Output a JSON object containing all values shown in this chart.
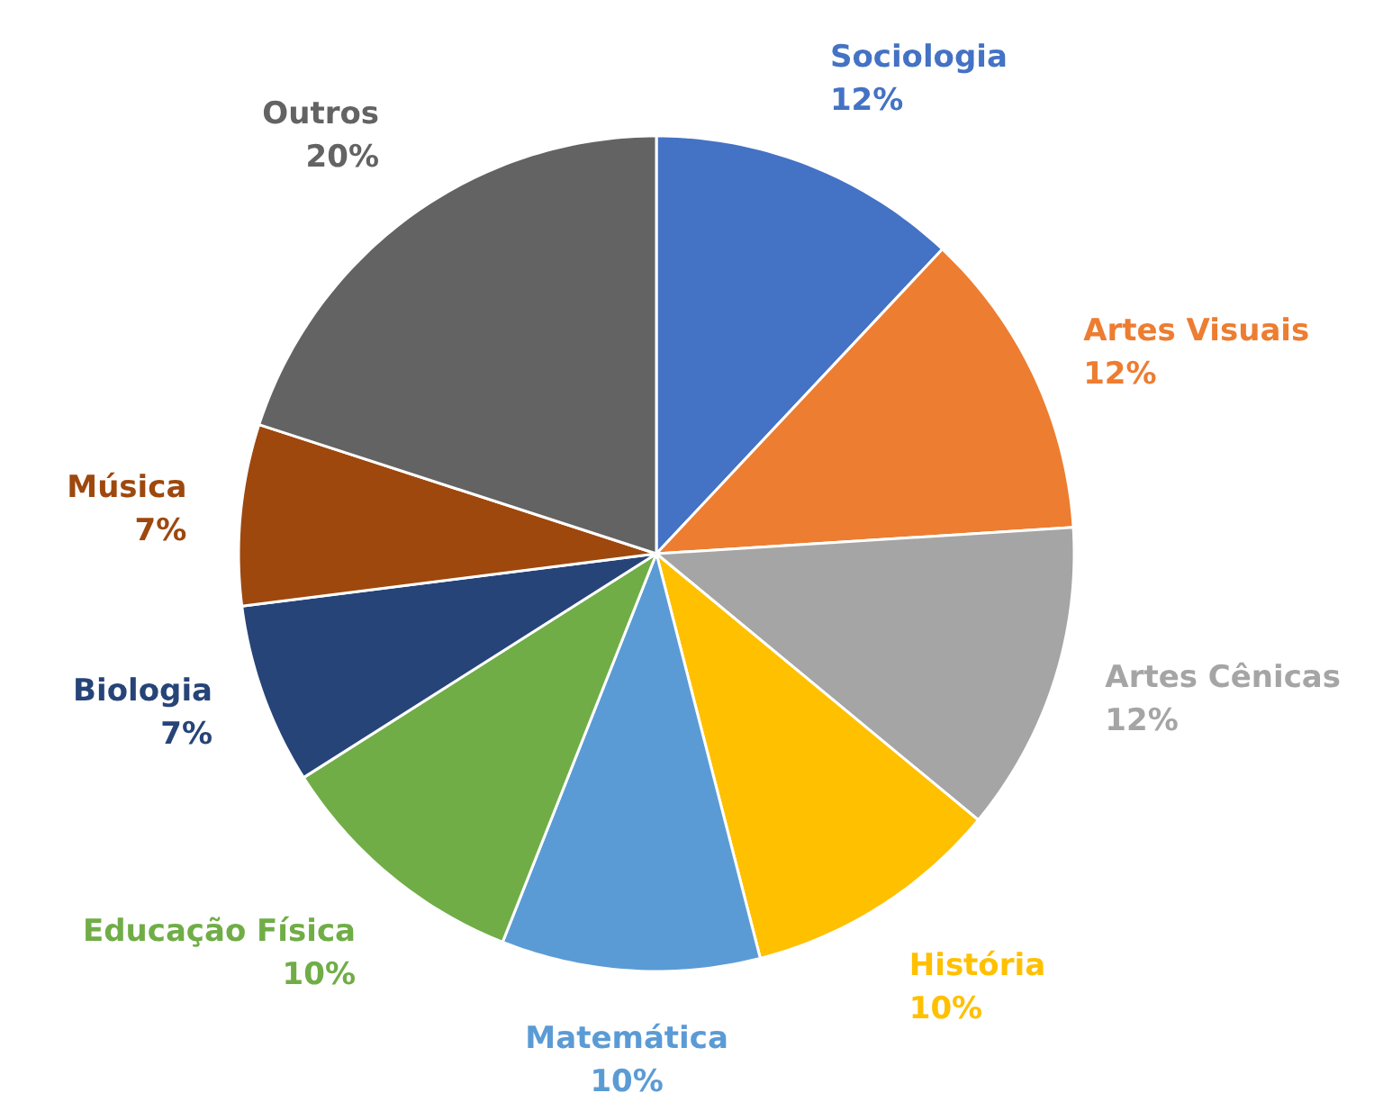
{
  "chart_data": {
    "type": "pie",
    "categories": [
      "Sociologia",
      "Artes Visuais",
      "Artes Cênicas",
      "História",
      "Matemática",
      "Educação Física",
      "Biologia",
      "Música",
      "Outros"
    ],
    "values": [
      12,
      12,
      12,
      10,
      10,
      10,
      7,
      7,
      20
    ],
    "value_labels": [
      "12%",
      "12%",
      "12%",
      "10%",
      "10%",
      "10%",
      "7%",
      "7%",
      "20%"
    ],
    "colors": [
      "#4472c4",
      "#ed7d31",
      "#a5a5a5",
      "#ffc000",
      "#5b9bd5",
      "#70ad47",
      "#264478",
      "#9e480e",
      "#636363"
    ]
  }
}
